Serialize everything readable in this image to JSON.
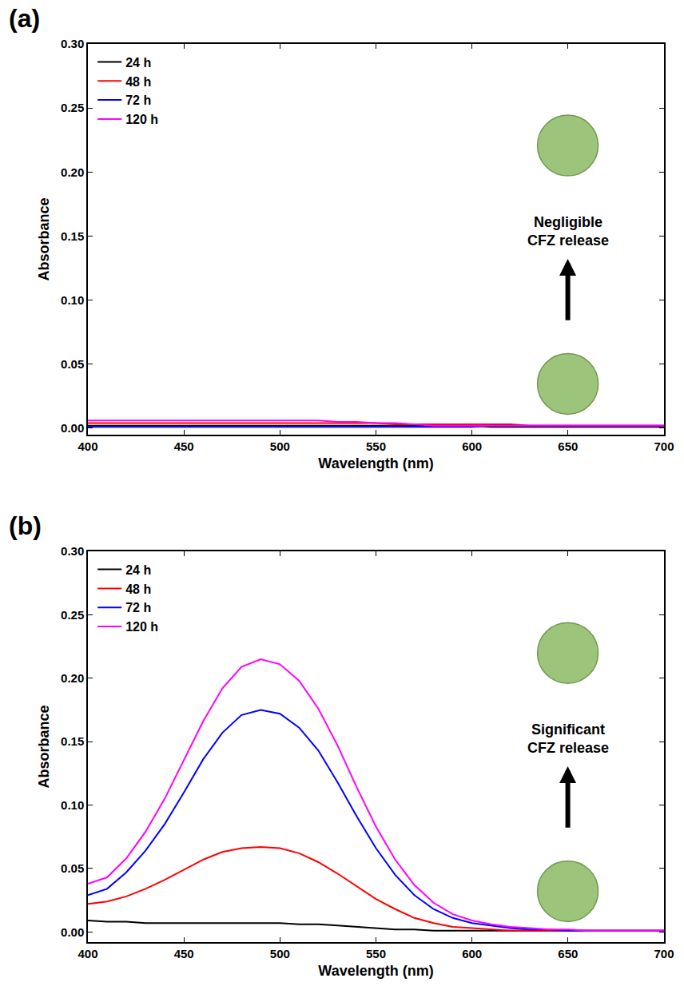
{
  "chart_data": [
    {
      "type": "line",
      "title": "(a)",
      "x_label": "Wavelength (nm)",
      "y_label": "Absorbance",
      "annotation": "Negligible CFZ release",
      "x": [
        400,
        410,
        420,
        430,
        440,
        450,
        460,
        470,
        480,
        490,
        500,
        510,
        520,
        530,
        540,
        550,
        560,
        570,
        580,
        590,
        600,
        610,
        620,
        630,
        640,
        650,
        660,
        670,
        680,
        690,
        700
      ],
      "series": [
        {
          "name": "24 h",
          "color": "#000000",
          "values": [
            0.002,
            0.002,
            0.002,
            0.002,
            0.002,
            0.002,
            0.002,
            0.002,
            0.002,
            0.002,
            0.002,
            0.002,
            0.002,
            0.002,
            0.002,
            0.002,
            0.002,
            0.002,
            0.002,
            0.002,
            0.002,
            0.001,
            0.001,
            0.001,
            0.001,
            0.001,
            0.001,
            0.001,
            0.001,
            0.001,
            0.001
          ]
        },
        {
          "name": "48 h",
          "color": "#ff0000",
          "values": [
            0.004,
            0.004,
            0.004,
            0.004,
            0.004,
            0.004,
            0.004,
            0.004,
            0.004,
            0.004,
            0.004,
            0.004,
            0.004,
            0.004,
            0.004,
            0.004,
            0.003,
            0.003,
            0.003,
            0.003,
            0.003,
            0.003,
            0.003,
            0.002,
            0.002,
            0.002,
            0.002,
            0.002,
            0.002,
            0.002,
            0.002
          ]
        },
        {
          "name": "72 h",
          "color": "#0000ff",
          "values": [
            0.001,
            0.001,
            0.001,
            0.001,
            0.001,
            0.001,
            0.001,
            0.001,
            0.001,
            0.001,
            0.001,
            0.001,
            0.001,
            0.001,
            0.001,
            0.001,
            0.001,
            0.001,
            0.001,
            0.001,
            0.001,
            0.002,
            0.002,
            0.002,
            0.002,
            0.002,
            0.002,
            0.002,
            0.002,
            0.002,
            0.002
          ]
        },
        {
          "name": "120 h",
          "color": "#ff00ff",
          "values": [
            0.006,
            0.006,
            0.006,
            0.006,
            0.006,
            0.006,
            0.006,
            0.006,
            0.006,
            0.006,
            0.006,
            0.006,
            0.006,
            0.005,
            0.005,
            0.004,
            0.004,
            0.003,
            0.002,
            0.002,
            0.002,
            0.002,
            0.002,
            0.002,
            0.002,
            0.002,
            0.002,
            0.002,
            0.002,
            0.002,
            0.002
          ]
        }
      ],
      "xlim": [
        400,
        700
      ],
      "xticks": [
        400,
        450,
        500,
        550,
        600,
        650,
        700
      ],
      "ylim": [
        -0.005,
        0.3
      ],
      "yticks": [
        {
          "value": 0,
          "label": "0.00"
        },
        {
          "value": 0.05,
          "label": "0.05"
        },
        {
          "value": 0.1,
          "label": "0.10"
        },
        {
          "value": 0.15,
          "label": "0.15"
        },
        {
          "value": 0.2,
          "label": "0.20"
        },
        {
          "value": 0.25,
          "label": "0.25"
        },
        {
          "value": 0.3,
          "label": "0.30"
        }
      ],
      "grid": false,
      "legend": "upper left"
    },
    {
      "type": "line",
      "title": "(b)",
      "x_label": "Wavelength (nm)",
      "y_label": "Absorbance",
      "annotation": "Significant CFZ release",
      "x": [
        400,
        410,
        420,
        430,
        440,
        450,
        460,
        470,
        480,
        490,
        500,
        510,
        520,
        530,
        540,
        550,
        560,
        570,
        580,
        590,
        600,
        610,
        620,
        630,
        640,
        650,
        660,
        670,
        680,
        690,
        700
      ],
      "series": [
        {
          "name": "24 h",
          "color": "#000000",
          "values": [
            0.009,
            0.008,
            0.008,
            0.007,
            0.007,
            0.007,
            0.007,
            0.007,
            0.007,
            0.007,
            0.007,
            0.006,
            0.006,
            0.005,
            0.004,
            0.003,
            0.002,
            0.002,
            0.001,
            0.001,
            0.001,
            0.001,
            0.001,
            0.001,
            0.001,
            0.001,
            0.001,
            0.001,
            0.001,
            0.001,
            0.001
          ]
        },
        {
          "name": "48 h",
          "color": "#ff0000",
          "values": [
            0.022,
            0.024,
            0.028,
            0.034,
            0.041,
            0.049,
            0.057,
            0.063,
            0.066,
            0.067,
            0.066,
            0.062,
            0.055,
            0.046,
            0.036,
            0.026,
            0.018,
            0.011,
            0.007,
            0.004,
            0.003,
            0.002,
            0.001,
            0.001,
            0.001,
            0.001,
            0.001,
            0.001,
            0.001,
            0.001,
            0.001
          ]
        },
        {
          "name": "72 h",
          "color": "#0000ff",
          "values": [
            0.029,
            0.034,
            0.047,
            0.064,
            0.085,
            0.11,
            0.136,
            0.157,
            0.171,
            0.175,
            0.172,
            0.161,
            0.143,
            0.118,
            0.091,
            0.066,
            0.045,
            0.029,
            0.018,
            0.011,
            0.007,
            0.005,
            0.003,
            0.002,
            0.002,
            0.001,
            0.001,
            0.001,
            0.001,
            0.001,
            0.001
          ]
        },
        {
          "name": "120 h",
          "color": "#ff00ff",
          "values": [
            0.038,
            0.043,
            0.058,
            0.079,
            0.105,
            0.135,
            0.166,
            0.192,
            0.209,
            0.215,
            0.211,
            0.198,
            0.176,
            0.147,
            0.114,
            0.083,
            0.057,
            0.037,
            0.023,
            0.014,
            0.009,
            0.006,
            0.004,
            0.003,
            0.002,
            0.002,
            0.001,
            0.001,
            0.001,
            0.001,
            0.001
          ]
        }
      ],
      "xlim": [
        400,
        700
      ],
      "xticks": [
        400,
        450,
        500,
        550,
        600,
        650,
        700
      ],
      "ylim": [
        -0.008,
        0.3
      ],
      "yticks": [
        {
          "value": 0,
          "label": "0.00"
        },
        {
          "value": 0.05,
          "label": "0.05"
        },
        {
          "value": 0.1,
          "label": "0.10"
        },
        {
          "value": 0.15,
          "label": "0.15"
        },
        {
          "value": 0.2,
          "label": "0.20"
        },
        {
          "value": 0.25,
          "label": "0.25"
        },
        {
          "value": 0.3,
          "label": "0.30"
        }
      ],
      "grid": false,
      "legend": "upper left"
    }
  ]
}
